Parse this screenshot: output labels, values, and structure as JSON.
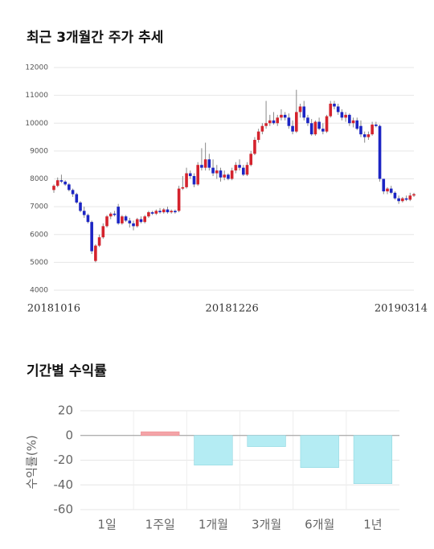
{
  "chart_data": [
    {
      "type": "candlestick",
      "title": "최근 3개월간 주가 추세",
      "categories": [
        "20181016",
        null,
        null,
        null,
        null,
        null,
        null,
        null,
        null,
        null,
        null,
        null,
        null,
        null,
        null,
        null,
        null,
        null,
        null,
        null,
        null,
        null,
        null,
        null,
        null,
        null,
        null,
        null,
        null,
        null,
        null,
        null,
        null,
        null,
        null,
        null,
        null,
        null,
        null,
        null,
        null,
        null,
        null,
        null,
        null,
        null,
        null,
        "20181226",
        null,
        null,
        null,
        null,
        null,
        null,
        null,
        null,
        null,
        null,
        null,
        null,
        null,
        null,
        null,
        null,
        null,
        null,
        null,
        null,
        null,
        null,
        null,
        null,
        null,
        null,
        null,
        null,
        null,
        null,
        null,
        null,
        null,
        null,
        null,
        null,
        null,
        null,
        null,
        null,
        null,
        null,
        null,
        null,
        null,
        null,
        null,
        "20190314"
      ],
      "open": [
        7600,
        7750,
        7950,
        7900,
        7800,
        7600,
        7450,
        7150,
        6850,
        6700,
        6450,
        5050,
        5600,
        5900,
        6300,
        6650,
        6750,
        7000,
        6400,
        6650,
        6500,
        6400,
        6300,
        6550,
        6450,
        6650,
        6800,
        6750,
        6850,
        6800,
        6900,
        6800,
        6850,
        6850,
        7650,
        7700,
        8200,
        8100,
        7800,
        8500,
        8400,
        8700,
        8400,
        8200,
        8300,
        8050,
        8150,
        8000,
        8300,
        8500,
        8400,
        8150,
        8500,
        8900,
        9400,
        9700,
        9900,
        10000,
        10100,
        10000,
        10200,
        10300,
        10200,
        9900,
        9700,
        10400,
        10600,
        10200,
        10000,
        9600,
        10050,
        9800,
        9700,
        10250,
        10700,
        10600,
        10400,
        10200,
        10300,
        10000,
        10100,
        9900,
        9600,
        9500,
        9600,
        9950,
        9900,
        8000,
        7550,
        7650,
        7500,
        7300,
        7200,
        7300,
        7250,
        7400
      ],
      "high": [
        7800,
        8050,
        8150,
        7950,
        7850,
        7650,
        7500,
        7200,
        7000,
        6750,
        6500,
        5650,
        6000,
        6400,
        6700,
        6800,
        6850,
        7100,
        6700,
        6700,
        6600,
        6500,
        6600,
        6650,
        6700,
        6850,
        6850,
        6900,
        6950,
        6950,
        7000,
        6900,
        6900,
        7750,
        8100,
        8400,
        8300,
        8200,
        8600,
        9100,
        9300,
        8900,
        8700,
        8500,
        8400,
        8300,
        8200,
        8400,
        8600,
        8700,
        8500,
        8600,
        9000,
        9500,
        9800,
        10000,
        10800,
        10300,
        10400,
        10300,
        10500,
        10400,
        10350,
        10100,
        11200,
        10700,
        10800,
        10300,
        10150,
        10100,
        10200,
        10000,
        10300,
        10800,
        10800,
        10700,
        10500,
        10400,
        10350,
        10200,
        10200,
        10100,
        9700,
        9700,
        10050,
        10050,
        9950,
        8000,
        7700,
        7750,
        7550,
        7400,
        7350,
        7400,
        7500,
        7500
      ],
      "low": [
        7500,
        7700,
        7850,
        7750,
        7550,
        7350,
        7100,
        6800,
        6600,
        6400,
        5300,
        5000,
        5550,
        5850,
        6250,
        6550,
        6650,
        6350,
        6350,
        6450,
        6250,
        6150,
        6250,
        6400,
        6400,
        6600,
        6700,
        6700,
        6750,
        6750,
        6750,
        6750,
        6750,
        6800,
        7600,
        7650,
        8000,
        7700,
        7750,
        8300,
        8300,
        8300,
        8100,
        8000,
        7900,
        7950,
        7950,
        7950,
        8200,
        8300,
        8100,
        8100,
        8450,
        8850,
        9300,
        9600,
        9800,
        9900,
        9950,
        9900,
        10100,
        10100,
        9800,
        9600,
        9650,
        10200,
        10100,
        9900,
        9550,
        9550,
        9750,
        9600,
        9650,
        10200,
        10500,
        10300,
        10100,
        10050,
        9900,
        9850,
        9750,
        9500,
        9300,
        9400,
        9550,
        9850,
        7900,
        7450,
        7450,
        7450,
        7250,
        7100,
        7150,
        7200,
        7200,
        7350
      ],
      "close": [
        7750,
        7950,
        7900,
        7800,
        7600,
        7450,
        7150,
        6850,
        6700,
        6450,
        5400,
        5600,
        5900,
        6300,
        6650,
        6750,
        6700,
        6400,
        6650,
        6500,
        6400,
        6300,
        6550,
        6450,
        6650,
        6800,
        6750,
        6850,
        6800,
        6900,
        6800,
        6850,
        6800,
        7650,
        7700,
        8200,
        8100,
        7800,
        8500,
        8400,
        8700,
        8400,
        8200,
        8300,
        8050,
        8150,
        8000,
        8300,
        8500,
        8400,
        8150,
        8500,
        8900,
        9400,
        9700,
        9900,
        10000,
        10100,
        10000,
        10200,
        10300,
        10200,
        9900,
        9700,
        10400,
        10600,
        10200,
        10000,
        9600,
        10050,
        9800,
        9700,
        10250,
        10700,
        10600,
        10400,
        10200,
        10300,
        10000,
        10100,
        9800,
        9600,
        9500,
        9600,
        9950,
        9900,
        8000,
        7550,
        7650,
        7500,
        7300,
        7200,
        7300,
        7250,
        7400,
        7450
      ],
      "up_color": "#d4232d",
      "down_color": "#1c25c4",
      "ylim": [
        4000,
        12000
      ],
      "yticks": [
        4000,
        5000,
        6000,
        7000,
        8000,
        9000,
        10000,
        11000,
        12000
      ],
      "grid": true
    },
    {
      "type": "bar",
      "title": "기간별 수익률",
      "ylabel": "수익률(%)",
      "categories": [
        "1일",
        "1주일",
        "1개월",
        "3개월",
        "6개월",
        "1년"
      ],
      "values": [
        0,
        3,
        -24,
        -9,
        -26,
        -39
      ],
      "positive_color": "#f4a4a8",
      "negative_color": "#b4ecf3",
      "ylim": [
        -60,
        20
      ],
      "yticks": [
        -60,
        -40,
        -20,
        0,
        20
      ],
      "grid": true
    }
  ]
}
